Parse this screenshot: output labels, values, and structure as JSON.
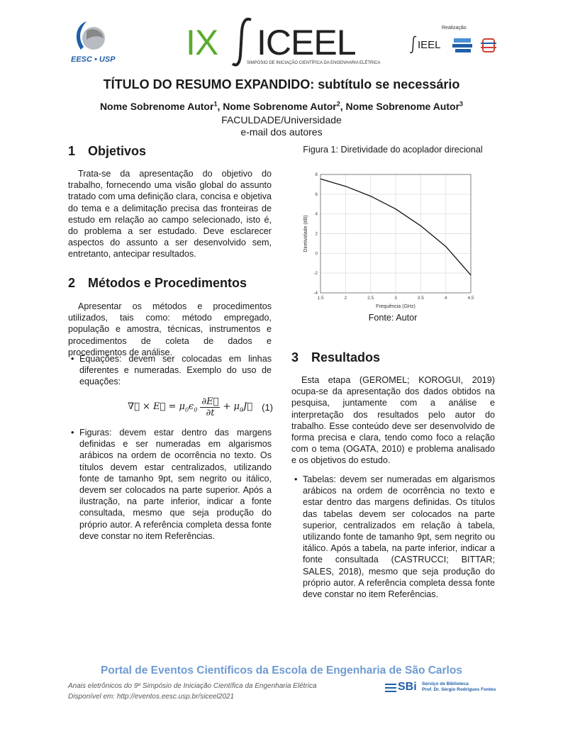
{
  "header": {
    "logo_left": "EESC • USP",
    "logo_center_roman": "IX",
    "logo_center_name": "ICEEL",
    "logo_center_subtitle": "SIMPÓSIO DE INICIAÇÃO CIENTÍFICA DA ENGENHARIA ELÉTRICA",
    "realizacao_label": "Realização",
    "logo_right_name": "IEEL"
  },
  "title": "TÍTULO DO RESUMO EXPANDIDO: subtítulo se necessário",
  "authors": [
    {
      "name": "Nome Sobrenome Autor",
      "sup": "1"
    },
    {
      "name": "Nome Sobrenome Autor",
      "sup": "2"
    },
    {
      "name": "Nome Sobrenome Autor",
      "sup": "3"
    }
  ],
  "affiliation": "FACULDADE/Universidade",
  "email": "e-mail dos autores",
  "sections": [
    {
      "num": "1",
      "title": "Objetivos",
      "text": "Trata-se da apresentação do objetivo do trabalho, fornecendo uma visão global do assunto tratado com uma definição clara, concisa e objetiva do tema e a delimitação precisa das fronteiras de estudo em relação ao campo selecionado, isto é, do problema a ser estudado. Deve esclarecer aspectos do assunto a ser desenvolvido sem, entretanto, antecipar resultados."
    },
    {
      "num": "2",
      "title": "Métodos e Procedimentos",
      "text": "Apresentar os métodos e procedimentos utilizados, tais como: método empregado, população e amostra, técnicas, instrumentos e procedimentos de coleta de dados e procedimentos de análise.",
      "bullets": [
        "Equações: devem ser colocadas em linhas diferentes e numeradas. Exemplo do uso de equações:",
        "Figuras: devem estar dentro das margens definidas e ser numeradas em algarismos arábicos na ordem de ocorrência no texto. Os títulos devem estar centralizados, utilizando fonte de tamanho 9pt, sem negrito ou itálico, devem ser colocados na parte superior. Após a ilustração, na parte inferior, indicar a fonte consultada, mesmo que seja produção do próprio autor. A referência completa dessa fonte deve constar no item Referências."
      ],
      "equation_number": "(1)"
    },
    {
      "num": "3",
      "title": "Resultados",
      "text": "Esta etapa (GEROMEL; KOROGUI, 2019) ocupa-se da apresentação dos dados obtidos na pesquisa, juntamente com a análise e interpretação dos resultados pelo autor do trabalho. Esse conteúdo deve ser desenvolvido de forma precisa e clara, tendo como foco a relação com o tema (OGATA, 2010) e problema analisado e os objetivos do estudo.",
      "bullets": [
        "Tabelas: devem ser numeradas em algarismos arábicos na ordem de ocorrência no texto e estar dentro das margens definidas. Os títulos das tabelas devem ser colocados na parte superior, centralizados em relação à tabela, utilizando fonte de tamanho 9pt, sem negrito ou itálico. Após a tabela, na parte inferior, indicar a fonte consultada (CASTRUCCI; BITTAR; SALES, 2018), mesmo que seja produção do próprio autor. A referência completa dessa fonte deve constar no item Referências."
      ]
    }
  ],
  "figure": {
    "caption": "Figura 1: Diretividade do acoplador direcional",
    "source": "Fonte: Autor"
  },
  "chart_data": {
    "type": "line",
    "xlabel": "Frequência (GHz)",
    "ylabel": "Diretividade (dB)",
    "xlim": [
      1.5,
      4.5
    ],
    "ylim": [
      -4,
      8
    ],
    "grid": true,
    "xticks": [
      "1.5",
      "2",
      "2.5",
      "3",
      "3.5",
      "4",
      "4.5"
    ],
    "yticks": [
      "-4",
      "-2",
      "0",
      "2",
      "4",
      "6",
      "8"
    ],
    "x": [
      1.5,
      2,
      2.5,
      3,
      3.5,
      4,
      4.5
    ],
    "y": [
      7.55,
      6.8,
      5.8,
      4.5,
      2.8,
      0.7,
      -2.2
    ],
    "color": "#111111"
  },
  "footer": {
    "portal": "Portal de Eventos Científicos da Escola de Engenharia de São Carlos",
    "line1": "Anais eletrônicos do 9º Simpósio de Iniciação Científica da Engenharia Elétrica",
    "line2": "Disponível em: http://eventos.eesc.usp.br/siceel2021",
    "sbi": "SBi",
    "sbi_line1": "Serviço de Biblioteca",
    "sbi_line2": "Prof. Dr. Sérgio Rodrigues Fontes"
  },
  "colors": {
    "green": "#5aab2e",
    "blue": "#1f5fa8",
    "portal": "#6f9bd1"
  }
}
